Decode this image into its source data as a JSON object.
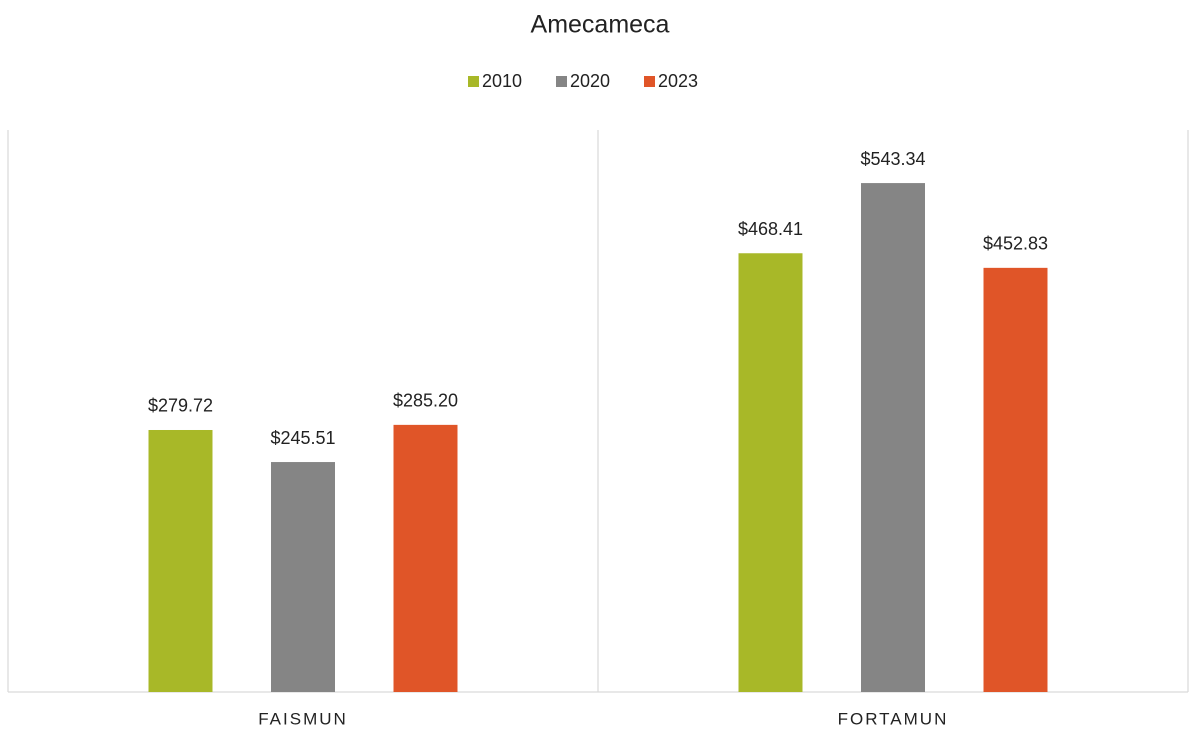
{
  "chart_data": {
    "type": "bar",
    "title": "Amecameca",
    "categories": [
      "FAISMUN",
      "FORTAMUN"
    ],
    "series": [
      {
        "name": "2010",
        "color": "#a8b828",
        "values": [
          279.72,
          468.41
        ],
        "value_labels": [
          "$279.72",
          "$468.41"
        ]
      },
      {
        "name": "2020",
        "color": "#858585",
        "values": [
          245.51,
          543.34
        ],
        "value_labels": [
          "$245.51",
          "$543.34"
        ]
      },
      {
        "name": "2023",
        "color": "#e05528",
        "values": [
          285.2,
          452.83
        ],
        "value_labels": [
          "$285.20",
          "$452.83"
        ]
      }
    ],
    "ylim": [
      0,
      600
    ],
    "legend": "top"
  }
}
